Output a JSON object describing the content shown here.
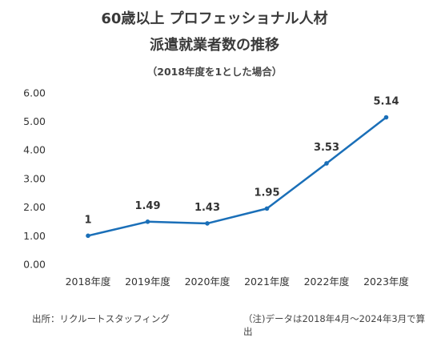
{
  "title_line1": "60歳以上 プロフェッショナル人材",
  "title_line2": "派遣就業者数の推移",
  "subtitle": "（2018年度を1とした場合）",
  "source": "出所：リクルートスタッフィング",
  "note": "（注)データは2018年4月～2024年3月で算出",
  "colors": {
    "line": "#1a6fb8",
    "axis_text": "#333333"
  },
  "chart_data": {
    "type": "line",
    "title": "60歳以上 プロフェッショナル人材 派遣就業者数の推移",
    "subtitle": "（2018年度を1とした場合）",
    "categories": [
      "2018年度",
      "2019年度",
      "2020年度",
      "2021年度",
      "2022年度",
      "2023年度"
    ],
    "values": [
      1,
      1.49,
      1.43,
      1.95,
      3.53,
      5.14
    ],
    "value_labels": [
      "1",
      "1.49",
      "1.43",
      "1.95",
      "3.53",
      "5.14"
    ],
    "yticks": [
      "0.00",
      "1.00",
      "2.00",
      "3.00",
      "4.00",
      "5.00",
      "6.00"
    ],
    "ylim": [
      0,
      6
    ],
    "grid": false,
    "markers": true
  }
}
